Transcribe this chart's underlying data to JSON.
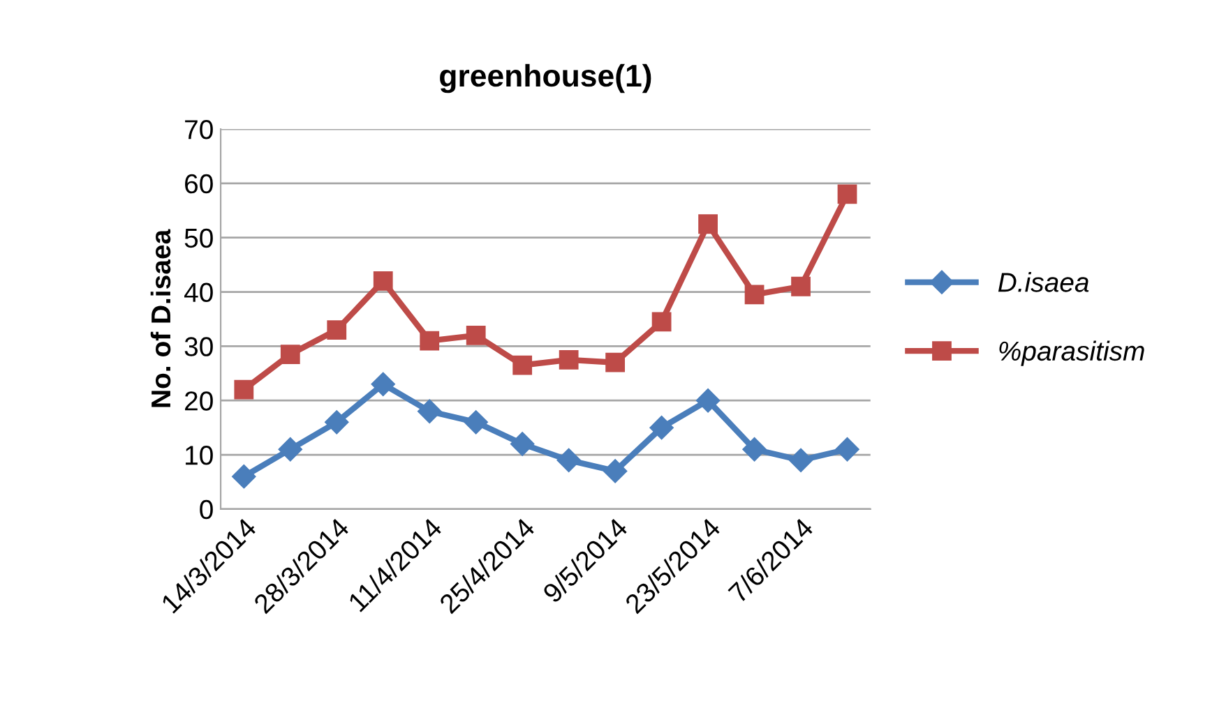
{
  "chart_data": {
    "type": "line",
    "title": "greenhouse(1)",
    "ylabel": "No. of D.isaea",
    "categories": [
      "14/3/2014",
      null,
      "28/3/2014",
      null,
      "11/4/2014",
      null,
      "25/4/2014",
      null,
      "9/5/2014",
      null,
      "23/5/2014",
      null,
      "7/6/2014",
      null
    ],
    "series": [
      {
        "name": "D.isaea",
        "color": "#4a7ebb",
        "marker": "diamond",
        "values": [
          6,
          11,
          16,
          23,
          18,
          16,
          12,
          9,
          7,
          15,
          20,
          11,
          9,
          11
        ]
      },
      {
        "name": "%parasitism",
        "color": "#be4b48",
        "marker": "square",
        "values": [
          22,
          28.5,
          33,
          42,
          31,
          32,
          26.5,
          27.5,
          27,
          34.5,
          52.5,
          39.5,
          41,
          58
        ]
      }
    ],
    "ylim": [
      0,
      70
    ],
    "yticks": [
      0,
      10,
      20,
      30,
      40,
      50,
      60,
      70
    ],
    "grid": "y",
    "legend": "right"
  }
}
